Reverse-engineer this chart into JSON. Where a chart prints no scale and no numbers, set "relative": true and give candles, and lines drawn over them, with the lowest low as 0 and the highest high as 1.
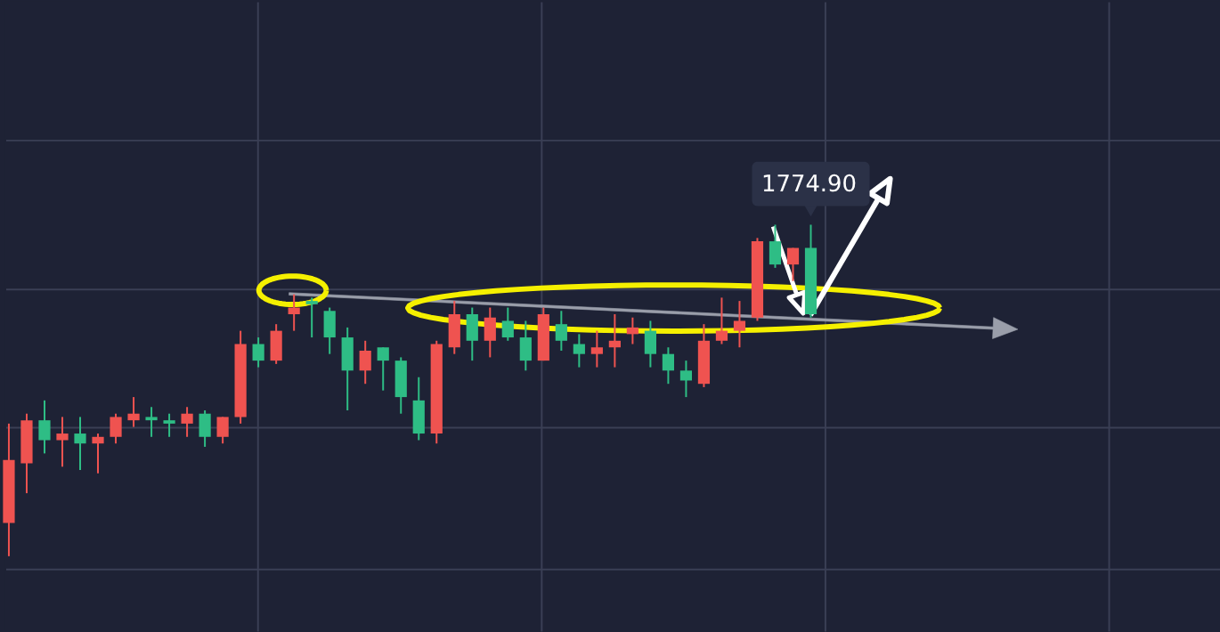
{
  "chart_data": {
    "type": "candlestick",
    "relative": true,
    "grid": true,
    "tick_labels": false,
    "categories": [
      null,
      null,
      null,
      null,
      null,
      null,
      null,
      null,
      null,
      null,
      null,
      null,
      null,
      null,
      null,
      null,
      null,
      null,
      null,
      null,
      null,
      null,
      null,
      null,
      null,
      null,
      null,
      null,
      null,
      null,
      null,
      null,
      null,
      null,
      null,
      null,
      null,
      null,
      null,
      null,
      null,
      null,
      null,
      null,
      null,
      null,
      null,
      null,
      null,
      null,
      null,
      null,
      null,
      null,
      null,
      null,
      null,
      null
    ],
    "ohlc": [
      [
        0.1,
        0.4,
        0.0,
        0.29
      ],
      [
        0.28,
        0.43,
        0.19,
        0.41
      ],
      [
        0.41,
        0.47,
        0.31,
        0.35
      ],
      [
        0.35,
        0.42,
        0.27,
        0.37
      ],
      [
        0.37,
        0.42,
        0.26,
        0.34
      ],
      [
        0.34,
        0.37,
        0.25,
        0.36
      ],
      [
        0.36,
        0.43,
        0.34,
        0.42
      ],
      [
        0.41,
        0.48,
        0.39,
        0.43
      ],
      [
        0.42,
        0.45,
        0.36,
        0.41
      ],
      [
        0.41,
        0.43,
        0.36,
        0.4
      ],
      [
        0.4,
        0.45,
        0.36,
        0.43
      ],
      [
        0.43,
        0.44,
        0.33,
        0.36
      ],
      [
        0.36,
        0.42,
        0.34,
        0.42
      ],
      [
        0.42,
        0.68,
        0.4,
        0.64
      ],
      [
        0.64,
        0.66,
        0.57,
        0.59
      ],
      [
        0.59,
        0.7,
        0.58,
        0.68
      ],
      [
        0.73,
        0.79,
        0.68,
        0.75
      ],
      [
        0.77,
        0.78,
        0.66,
        0.76
      ],
      [
        0.74,
        0.75,
        0.61,
        0.66
      ],
      [
        0.66,
        0.69,
        0.44,
        0.56
      ],
      [
        0.56,
        0.65,
        0.52,
        0.62
      ],
      [
        0.63,
        0.63,
        0.5,
        0.59
      ],
      [
        0.59,
        0.6,
        0.43,
        0.48
      ],
      [
        0.47,
        0.54,
        0.35,
        0.37
      ],
      [
        0.37,
        0.65,
        0.34,
        0.64
      ],
      [
        0.63,
        0.77,
        0.61,
        0.73
      ],
      [
        0.73,
        0.75,
        0.59,
        0.65
      ],
      [
        0.65,
        0.75,
        0.6,
        0.72
      ],
      [
        0.71,
        0.75,
        0.65,
        0.66
      ],
      [
        0.66,
        0.71,
        0.56,
        0.59
      ],
      [
        0.59,
        0.75,
        0.59,
        0.73
      ],
      [
        0.7,
        0.74,
        0.62,
        0.65
      ],
      [
        0.64,
        0.67,
        0.57,
        0.61
      ],
      [
        0.61,
        0.68,
        0.57,
        0.63
      ],
      [
        0.63,
        0.73,
        0.57,
        0.65
      ],
      [
        0.67,
        0.72,
        0.64,
        0.69
      ],
      [
        0.68,
        0.71,
        0.57,
        0.61
      ],
      [
        0.61,
        0.63,
        0.52,
        0.56
      ],
      [
        0.56,
        0.59,
        0.48,
        0.53
      ],
      [
        0.52,
        0.7,
        0.51,
        0.65
      ],
      [
        0.65,
        0.78,
        0.64,
        0.68
      ],
      [
        0.68,
        0.77,
        0.63,
        0.71
      ],
      [
        0.72,
        0.96,
        0.71,
        0.95
      ],
      [
        0.95,
        1.0,
        0.87,
        0.88
      ],
      [
        0.88,
        0.93,
        0.83,
        0.93
      ],
      [
        0.93,
        1.0,
        0.72,
        0.73
      ],
      null,
      null,
      null,
      null,
      null,
      null,
      null,
      null,
      null,
      null,
      null,
      null
    ],
    "colors": [
      "#ef5350",
      "#ef5350",
      "#2ebd85",
      "#ef5350",
      "#2ebd85",
      "#ef5350",
      "#ef5350",
      "#ef5350",
      "#2ebd85",
      "#2ebd85",
      "#ef5350",
      "#2ebd85",
      "#ef5350",
      "#ef5350",
      "#2ebd85",
      "#ef5350",
      "#ef5350",
      "#2ebd85",
      "#2ebd85",
      "#2ebd85",
      "#ef5350",
      "#2ebd85",
      "#2ebd85",
      "#2ebd85",
      "#ef5350",
      "#ef5350",
      "#2ebd85",
      "#ef5350",
      "#2ebd85",
      "#2ebd85",
      "#ef5350",
      "#2ebd85",
      "#2ebd85",
      "#ef5350",
      "#ef5350",
      "#ef5350",
      "#2ebd85",
      "#2ebd85",
      "#2ebd85",
      "#ef5350",
      "#ef5350",
      "#ef5350",
      "#ef5350",
      "#2ebd85",
      "#ef5350",
      "#2ebd85",
      null,
      null,
      null,
      null,
      null,
      null,
      null,
      null,
      null,
      null,
      null,
      null
    ],
    "annotations": [
      "1774.90"
    ]
  }
}
